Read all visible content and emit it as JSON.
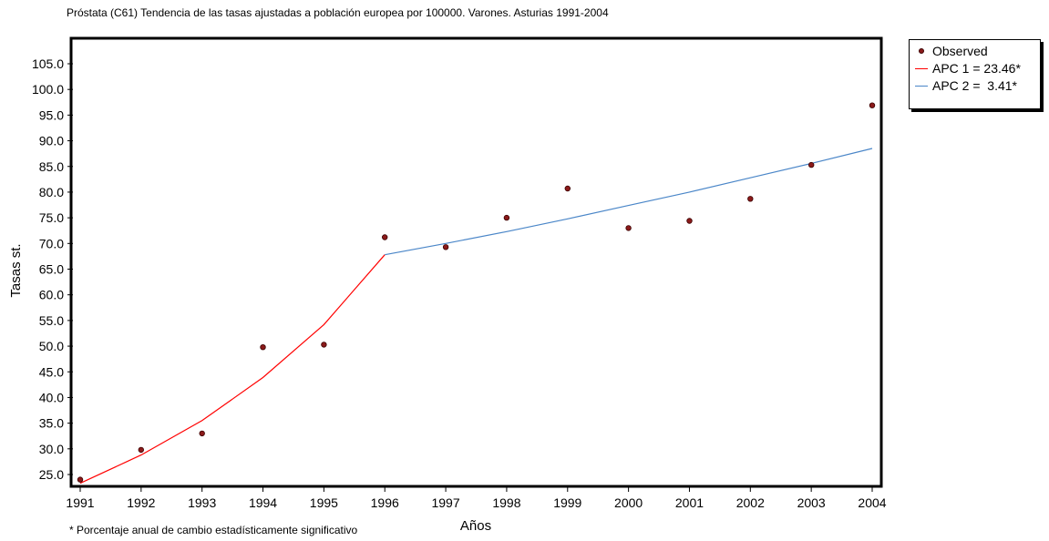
{
  "chart_data": {
    "type": "line",
    "title": "Próstata (C61) Tendencia de las tasas ajustadas a población europea por 100000. Varones. Asturias 1991-2004",
    "xlabel": "Años",
    "ylabel": "Tasas st.",
    "x": [
      1991,
      1992,
      1993,
      1994,
      1995,
      1996,
      1997,
      1998,
      1999,
      2000,
      2001,
      2002,
      2003,
      2004
    ],
    "xlim": [
      1991,
      2004
    ],
    "ylim": [
      22.5,
      108.5
    ],
    "yticks": [
      "25.0",
      "30.0",
      "35.0",
      "40.0",
      "45.0",
      "50.0",
      "55.0",
      "60.0",
      "65.0",
      "70.0",
      "75.0",
      "80.0",
      "85.0",
      "90.0",
      "95.0",
      "100.0",
      "105.0"
    ],
    "xticks": [
      "1991",
      "1992",
      "1993",
      "1994",
      "1995",
      "1996",
      "1997",
      "1998",
      "1999",
      "2000",
      "2001",
      "2002",
      "2003",
      "2004"
    ],
    "grid": false,
    "legend_position": "right-top",
    "series": [
      {
        "name": "Observed",
        "kind": "scatter",
        "color": "#8b1a1a",
        "points": [
          [
            1991,
            24.0
          ],
          [
            1992,
            29.8
          ],
          [
            1993,
            33.0
          ],
          [
            1994,
            49.8
          ],
          [
            1995,
            50.3
          ],
          [
            1996,
            71.2
          ],
          [
            1997,
            69.3
          ],
          [
            1998,
            75.0
          ],
          [
            1999,
            80.7
          ],
          [
            2000,
            73.0
          ],
          [
            2001,
            74.4
          ],
          [
            2002,
            78.7
          ],
          [
            2003,
            85.3
          ],
          [
            2004,
            96.9
          ]
        ]
      },
      {
        "name": "APC 1 = 23.46*",
        "kind": "line",
        "color": "#ff0000",
        "points": [
          [
            1991,
            23.3
          ],
          [
            1992,
            28.8
          ],
          [
            1993,
            35.5
          ],
          [
            1994,
            43.9
          ],
          [
            1995,
            54.2
          ],
          [
            1996,
            67.8
          ]
        ]
      },
      {
        "name": "APC 2 =  3.41*",
        "kind": "line",
        "color": "#4a86c8",
        "points": [
          [
            1996,
            67.8
          ],
          [
            1997,
            70.0
          ],
          [
            1998,
            72.3
          ],
          [
            1999,
            74.8
          ],
          [
            2000,
            77.4
          ],
          [
            2001,
            80.0
          ],
          [
            2002,
            82.8
          ],
          [
            2003,
            85.6
          ],
          [
            2004,
            88.5
          ]
        ]
      }
    ],
    "footnote": "* Porcentaje anual de cambio estadísticamente significativo"
  }
}
